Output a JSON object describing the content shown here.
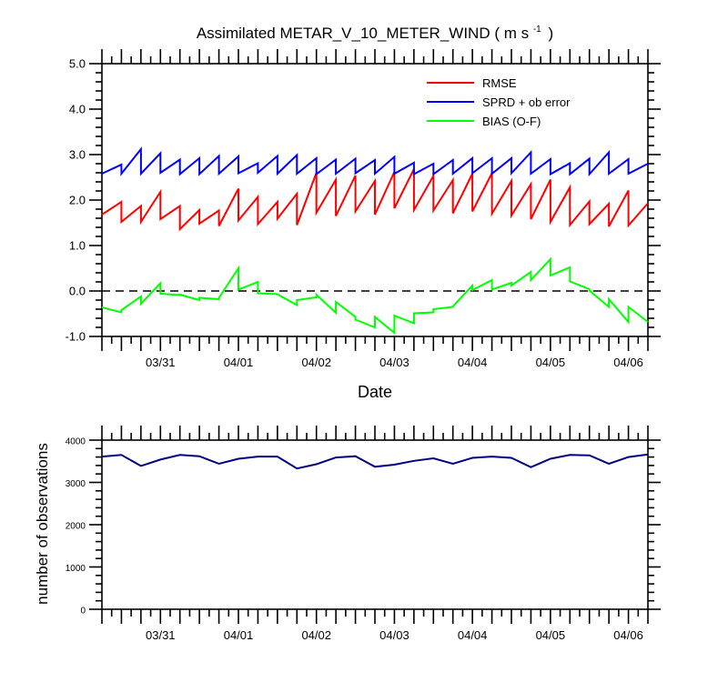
{
  "chart_data": [
    {
      "type": "line",
      "title": "Assimilated METAR_V_10_METER_WIND ( m s",
      "title_unit_sup": "-1",
      "title_close": ")",
      "xlabel": "Date",
      "ylabel": "",
      "ylim": [
        -1.0,
        5.0
      ],
      "yticks": [
        "5.0",
        "4.0",
        "3.0",
        "2.0",
        "1.0",
        "0.0",
        "-1.0"
      ],
      "xticklabels": [
        "03/31",
        "04/01",
        "04/02",
        "04/03",
        "04/04",
        "04/05",
        "04/06"
      ],
      "xtick_dates": [
        "2017-03-31",
        "2017-04-01",
        "2017-04-02",
        "2017-04-03",
        "2017-04-04",
        "2017-04-05",
        "2017-04-06"
      ],
      "xlim": [
        "2017-03-30 06:00",
        "2017-04-06 06:00"
      ],
      "zero_line": true,
      "legend_position": "top-right",
      "legend": [
        "RMSE",
        "SPRD + ob error",
        "BIAS (O-F)"
      ],
      "series": [
        {
          "name": "RMSE",
          "color": "#ff0000",
          "x": [
            "2017-03-30 06:00",
            "2017-03-30 12:00",
            "2017-03-30 12:00",
            "2017-03-30 18:00",
            "2017-03-30 18:00",
            "2017-03-31 00:00",
            "2017-03-31 00:00",
            "2017-03-31 06:00",
            "2017-03-31 06:00",
            "2017-03-31 12:00",
            "2017-03-31 12:00",
            "2017-03-31 18:00",
            "2017-03-31 18:00",
            "2017-04-01 00:00",
            "2017-04-01 00:00",
            "2017-04-01 06:00",
            "2017-04-01 06:00",
            "2017-04-01 12:00",
            "2017-04-01 12:00",
            "2017-04-01 18:00",
            "2017-04-01 18:00",
            "2017-04-02 00:00",
            "2017-04-02 00:00",
            "2017-04-02 06:00",
            "2017-04-02 06:00",
            "2017-04-02 12:00",
            "2017-04-02 12:00",
            "2017-04-02 18:00",
            "2017-04-02 18:00",
            "2017-04-03 00:00",
            "2017-04-03 00:00",
            "2017-04-03 06:00",
            "2017-04-03 06:00",
            "2017-04-03 12:00",
            "2017-04-03 12:00",
            "2017-04-03 18:00",
            "2017-04-03 18:00",
            "2017-04-04 00:00",
            "2017-04-04 00:00",
            "2017-04-04 06:00",
            "2017-04-04 06:00",
            "2017-04-04 12:00",
            "2017-04-04 12:00",
            "2017-04-04 18:00",
            "2017-04-04 18:00",
            "2017-04-05 00:00",
            "2017-04-05 00:00",
            "2017-04-05 06:00",
            "2017-04-05 06:00",
            "2017-04-05 12:00",
            "2017-04-05 12:00",
            "2017-04-05 18:00",
            "2017-04-05 18:00",
            "2017-04-06 00:00",
            "2017-04-06 00:00",
            "2017-04-06 06:00"
          ],
          "values": [
            1.68,
            1.96,
            1.52,
            1.87,
            1.52,
            2.18,
            1.58,
            1.87,
            1.36,
            1.78,
            1.48,
            1.77,
            1.43,
            2.25,
            1.55,
            2.07,
            1.47,
            1.96,
            1.59,
            2.14,
            1.45,
            2.6,
            1.72,
            2.45,
            1.65,
            2.54,
            1.75,
            2.42,
            1.68,
            2.62,
            1.82,
            2.68,
            1.78,
            2.53,
            1.77,
            2.44,
            1.71,
            2.58,
            1.75,
            2.59,
            1.7,
            2.42,
            1.66,
            2.35,
            1.58,
            2.45,
            1.52,
            2.28,
            1.45,
            1.97,
            1.47,
            1.92,
            1.42,
            2.21,
            1.44,
            1.93
          ]
        },
        {
          "name": "SPRD + ob error",
          "color": "#0000ff",
          "x": [
            "2017-03-30 06:00",
            "2017-03-30 12:00",
            "2017-03-30 12:00",
            "2017-03-30 18:00",
            "2017-03-30 18:00",
            "2017-03-31 00:00",
            "2017-03-31 00:00",
            "2017-03-31 06:00",
            "2017-03-31 06:00",
            "2017-03-31 12:00",
            "2017-03-31 12:00",
            "2017-03-31 18:00",
            "2017-03-31 18:00",
            "2017-04-01 00:00",
            "2017-04-01 00:00",
            "2017-04-01 06:00",
            "2017-04-01 06:00",
            "2017-04-01 12:00",
            "2017-04-01 12:00",
            "2017-04-01 18:00",
            "2017-04-01 18:00",
            "2017-04-02 00:00",
            "2017-04-02 00:00",
            "2017-04-02 06:00",
            "2017-04-02 06:00",
            "2017-04-02 12:00",
            "2017-04-02 12:00",
            "2017-04-02 18:00",
            "2017-04-02 18:00",
            "2017-04-03 00:00",
            "2017-04-03 00:00",
            "2017-04-03 06:00",
            "2017-04-03 06:00",
            "2017-04-03 12:00",
            "2017-04-03 12:00",
            "2017-04-03 18:00",
            "2017-04-03 18:00",
            "2017-04-04 00:00",
            "2017-04-04 00:00",
            "2017-04-04 06:00",
            "2017-04-04 06:00",
            "2017-04-04 12:00",
            "2017-04-04 12:00",
            "2017-04-04 18:00",
            "2017-04-04 18:00",
            "2017-04-05 00:00",
            "2017-04-05 00:00",
            "2017-04-05 06:00",
            "2017-04-05 06:00",
            "2017-04-05 12:00",
            "2017-04-05 12:00",
            "2017-04-05 18:00",
            "2017-04-05 18:00",
            "2017-04-06 00:00",
            "2017-04-06 00:00",
            "2017-04-06 06:00"
          ],
          "values": [
            2.58,
            2.78,
            2.58,
            3.12,
            2.58,
            3.03,
            2.6,
            2.89,
            2.57,
            2.92,
            2.57,
            2.97,
            2.58,
            2.96,
            2.59,
            2.81,
            2.6,
            2.97,
            2.58,
            2.99,
            2.58,
            2.92,
            2.57,
            2.89,
            2.58,
            2.91,
            2.59,
            2.88,
            2.58,
            2.95,
            2.58,
            2.82,
            2.57,
            2.8,
            2.57,
            2.88,
            2.58,
            2.92,
            2.59,
            2.92,
            2.58,
            2.92,
            2.59,
            3.05,
            2.58,
            2.9,
            2.57,
            2.81,
            2.57,
            2.91,
            2.57,
            3.05,
            2.58,
            2.9,
            2.58,
            2.8
          ]
        },
        {
          "name": "BIAS (O-F)",
          "color": "#00ff00",
          "x": [
            "2017-03-30 06:00",
            "2017-03-30 12:00",
            "2017-03-30 12:00",
            "2017-03-30 18:00",
            "2017-03-30 18:00",
            "2017-03-31 00:00",
            "2017-03-31 00:00",
            "2017-03-31 06:00",
            "2017-03-31 06:00",
            "2017-03-31 12:00",
            "2017-03-31 12:00",
            "2017-03-31 18:00",
            "2017-03-31 18:00",
            "2017-04-01 00:00",
            "2017-04-01 00:00",
            "2017-04-01 06:00",
            "2017-04-01 06:00",
            "2017-04-01 12:00",
            "2017-04-01 12:00",
            "2017-04-01 18:00",
            "2017-04-01 18:00",
            "2017-04-02 00:00",
            "2017-04-02 00:00",
            "2017-04-02 06:00",
            "2017-04-02 06:00",
            "2017-04-02 12:00",
            "2017-04-02 12:00",
            "2017-04-02 18:00",
            "2017-04-02 18:00",
            "2017-04-03 00:00",
            "2017-04-03 00:00",
            "2017-04-03 06:00",
            "2017-04-03 06:00",
            "2017-04-03 12:00",
            "2017-04-03 12:00",
            "2017-04-03 18:00",
            "2017-04-03 18:00",
            "2017-04-04 00:00",
            "2017-04-04 00:00",
            "2017-04-04 06:00",
            "2017-04-04 06:00",
            "2017-04-04 12:00",
            "2017-04-04 12:00",
            "2017-04-04 18:00",
            "2017-04-04 18:00",
            "2017-04-05 00:00",
            "2017-04-05 00:00",
            "2017-04-05 06:00",
            "2017-04-05 06:00",
            "2017-04-05 12:00",
            "2017-04-05 12:00",
            "2017-04-05 18:00",
            "2017-04-05 18:00",
            "2017-04-06 00:00",
            "2017-04-06 00:00",
            "2017-04-06 06:00"
          ],
          "values": [
            -0.36,
            -0.47,
            -0.42,
            -0.12,
            -0.28,
            0.17,
            -0.06,
            -0.09,
            -0.08,
            -0.2,
            -0.15,
            -0.18,
            -0.15,
            0.5,
            0.03,
            0.2,
            -0.05,
            -0.07,
            -0.07,
            -0.31,
            -0.2,
            -0.14,
            -0.08,
            -0.48,
            -0.24,
            -0.57,
            -0.63,
            -0.8,
            -0.57,
            -0.92,
            -0.54,
            -0.71,
            -0.49,
            -0.47,
            -0.4,
            -0.35,
            -0.34,
            0.12,
            0.02,
            0.24,
            0.03,
            0.18,
            0.12,
            0.42,
            0.24,
            0.7,
            0.34,
            0.52,
            0.21,
            0.04,
            0.01,
            -0.35,
            -0.18,
            -0.68,
            -0.35,
            -0.68
          ]
        }
      ]
    },
    {
      "type": "line",
      "title": "",
      "xlabel": "",
      "ylabel": "number of observations",
      "ylim": [
        0,
        4000
      ],
      "yticks": [
        "4000",
        "3000",
        "2000",
        "1000",
        "0"
      ],
      "ytick_values": [
        4000,
        3000,
        2000,
        1000,
        0
      ],
      "xticklabels": [
        "03/31",
        "04/01",
        "04/02",
        "04/03",
        "04/04",
        "04/05",
        "04/06"
      ],
      "xtick_dates": [
        "2017-03-31",
        "2017-04-01",
        "2017-04-02",
        "2017-04-03",
        "2017-04-04",
        "2017-04-05",
        "2017-04-06"
      ],
      "xlim": [
        "2017-03-30 06:00",
        "2017-04-06 06:00"
      ],
      "series": [
        {
          "name": "",
          "color": "#000080",
          "x": [
            "2017-03-30 06:00",
            "2017-03-30 12:00",
            "2017-03-30 18:00",
            "2017-03-31 00:00",
            "2017-03-31 06:00",
            "2017-03-31 12:00",
            "2017-03-31 18:00",
            "2017-04-01 00:00",
            "2017-04-01 06:00",
            "2017-04-01 12:00",
            "2017-04-01 18:00",
            "2017-04-02 00:00",
            "2017-04-02 06:00",
            "2017-04-02 12:00",
            "2017-04-02 18:00",
            "2017-04-03 00:00",
            "2017-04-03 06:00",
            "2017-04-03 12:00",
            "2017-04-03 18:00",
            "2017-04-04 00:00",
            "2017-04-04 06:00",
            "2017-04-04 12:00",
            "2017-04-04 18:00",
            "2017-04-05 00:00",
            "2017-04-05 06:00",
            "2017-04-05 12:00",
            "2017-04-05 18:00",
            "2017-04-06 00:00",
            "2017-04-06 06:00"
          ],
          "values": [
            3610,
            3650,
            3390,
            3540,
            3650,
            3620,
            3440,
            3560,
            3610,
            3610,
            3330,
            3430,
            3590,
            3620,
            3370,
            3420,
            3510,
            3570,
            3440,
            3580,
            3610,
            3580,
            3360,
            3560,
            3650,
            3640,
            3440,
            3600,
            3660
          ]
        }
      ]
    }
  ]
}
